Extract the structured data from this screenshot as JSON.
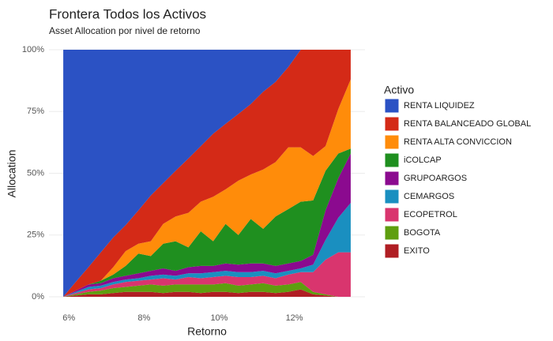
{
  "chart_data": {
    "type": "stacked-area",
    "title": "Frontera Todos los Activos",
    "subtitle": "Asset Allocation por nivel de retorno",
    "x_label": "Retorno",
    "y_label": "Allocation",
    "legend_title": "Activo",
    "legend_position": "right",
    "grid": true,
    "x": [
      5.85,
      6.18,
      6.52,
      6.85,
      7.18,
      7.51,
      7.85,
      8.18,
      8.51,
      8.84,
      9.18,
      9.51,
      9.84,
      10.17,
      10.51,
      10.84,
      11.17,
      11.5,
      11.84,
      12.17,
      12.5,
      12.83,
      13.17,
      13.5
    ],
    "xlim": [
      5.47,
      13.88
    ],
    "xticks": [
      {
        "value": 6,
        "label": "6%"
      },
      {
        "value": 8,
        "label": "8%"
      },
      {
        "value": 10,
        "label": "10%"
      },
      {
        "value": 12,
        "label": "12%"
      }
    ],
    "ylim": [
      0,
      100
    ],
    "yticks": [
      {
        "value": 0,
        "label": "0%"
      },
      {
        "value": 25,
        "label": "25%"
      },
      {
        "value": 50,
        "label": "50%"
      },
      {
        "value": 75,
        "label": "75%"
      },
      {
        "value": 100,
        "label": "100%"
      }
    ],
    "series": [
      {
        "name": "RENTA LIQUIDEZ",
        "color": "#2b52c4",
        "values": [
          100,
          94,
          88,
          82,
          76,
          71,
          65,
          59,
          54,
          49,
          44,
          39,
          34,
          30,
          26,
          22,
          17,
          13,
          7,
          0,
          0,
          0,
          0,
          0
        ]
      },
      {
        "name": "RENTA BALANCEADO GLOBAL",
        "color": "#d42a17",
        "values": [
          0,
          3.5,
          7,
          11.5,
          12,
          10.5,
          13.5,
          18.5,
          16.5,
          18.5,
          22,
          22.5,
          25.5,
          26.5,
          27,
          28.5,
          31.5,
          32.5,
          32.5,
          39.5,
          43,
          39,
          24,
          12
        ]
      },
      {
        "name": "RENTA ALTA CONVICCION",
        "color": "#ff8c0a",
        "values": [
          0,
          0,
          0,
          0,
          3,
          6,
          4,
          6,
          8,
          10,
          14,
          12,
          18,
          14,
          22,
          18,
          24,
          22,
          25,
          22,
          18,
          10,
          18,
          28
        ]
      },
      {
        "name": "iCOLCAP",
        "color": "#1f8f1f",
        "values": [
          0,
          0,
          0,
          1,
          1.5,
          4,
          8,
          6,
          10,
          12,
          8,
          14,
          10,
          16,
          12,
          18,
          14,
          20,
          22,
          24,
          22,
          16,
          10,
          2
        ]
      },
      {
        "name": "GRUPOARGOS",
        "color": "#8b0a8f",
        "values": [
          0,
          0.5,
          1,
          1,
          1.5,
          1.5,
          2,
          2,
          2.5,
          2,
          2.5,
          3,
          2.5,
          3,
          3,
          3.5,
          3,
          3,
          3,
          3,
          4,
          12,
          16,
          20
        ]
      },
      {
        "name": "CEMARGOS",
        "color": "#1a8fc0",
        "values": [
          0,
          0.5,
          1,
          1,
          1,
          1,
          1,
          1.5,
          1.5,
          1.5,
          1.5,
          2,
          2,
          2,
          2,
          2,
          2,
          2,
          1.5,
          1.5,
          3,
          8,
          14,
          20
        ]
      },
      {
        "name": "ECOPETROL",
        "color": "#d9356e",
        "values": [
          0,
          0.5,
          1,
          1,
          1.5,
          2,
          2,
          2,
          3,
          2,
          3,
          2.5,
          3,
          3,
          3.5,
          3,
          3,
          3,
          4,
          4,
          8,
          14,
          18,
          18
        ]
      },
      {
        "name": "BOGOTA",
        "color": "#5e9e0f",
        "values": [
          0,
          0.5,
          1,
          1.5,
          2,
          2,
          2.5,
          3,
          3,
          3,
          3,
          3.5,
          3,
          3.5,
          3,
          3,
          3.5,
          3,
          3,
          3,
          1,
          0.5,
          0,
          0
        ]
      },
      {
        "name": "EXITO",
        "color": "#b01e24",
        "values": [
          0,
          0.5,
          1,
          1,
          1.5,
          2,
          2,
          2,
          1.5,
          2,
          2,
          1.5,
          2,
          2,
          1.5,
          2,
          2,
          1.5,
          2,
          3,
          1,
          0.5,
          0,
          0
        ]
      }
    ]
  }
}
